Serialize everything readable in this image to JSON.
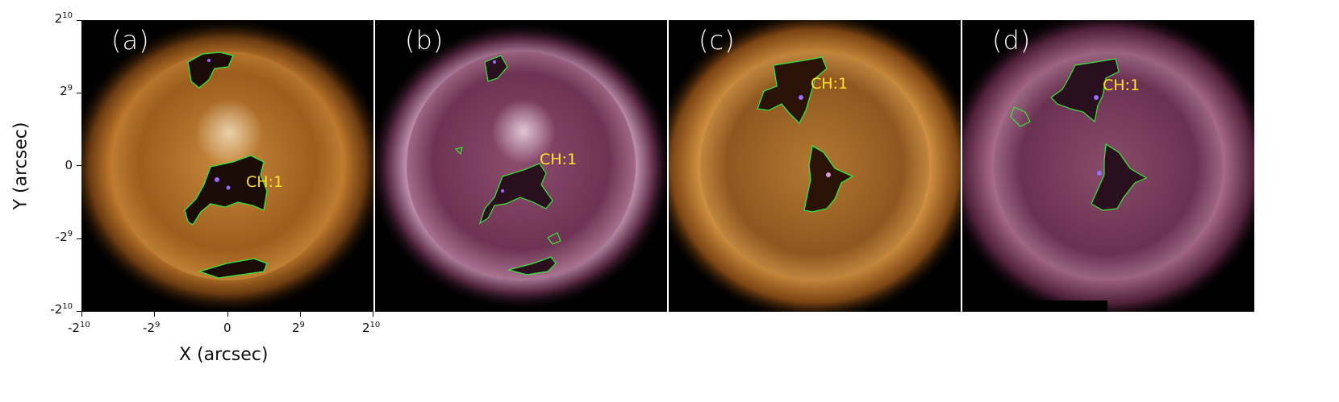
{
  "panels": [
    {
      "label": "(a)",
      "ch_label": "CH:1",
      "theme": "gold"
    },
    {
      "label": "(b)",
      "ch_label": "CH:1",
      "theme": "purple"
    },
    {
      "label": "(c)",
      "ch_label": "CH:1",
      "theme": "gold"
    },
    {
      "label": "(d)",
      "ch_label": "CH:1",
      "theme": "purple"
    }
  ],
  "axes": {
    "xlabel": "X (arcsec)",
    "ylabel": "Y (arcsec)",
    "x_ticks": [
      {
        "base": "-2",
        "exp": "10"
      },
      {
        "base": "-2",
        "exp": "9"
      },
      {
        "base": "0",
        "exp": ""
      },
      {
        "base": "2",
        "exp": "9"
      },
      {
        "base": "2",
        "exp": "10"
      }
    ],
    "y_ticks": [
      {
        "base": "2",
        "exp": "10"
      },
      {
        "base": "2",
        "exp": "9"
      },
      {
        "base": "0",
        "exp": ""
      },
      {
        "base": "-2",
        "exp": "9"
      },
      {
        "base": "-2",
        "exp": "10"
      }
    ]
  },
  "colors": {
    "contour": "#39e639",
    "inner_contour": "#9a6cff",
    "ch_label": "#ffe02a",
    "gold_disk": "#a8641f",
    "purple_disk": "#7c3d5c"
  }
}
